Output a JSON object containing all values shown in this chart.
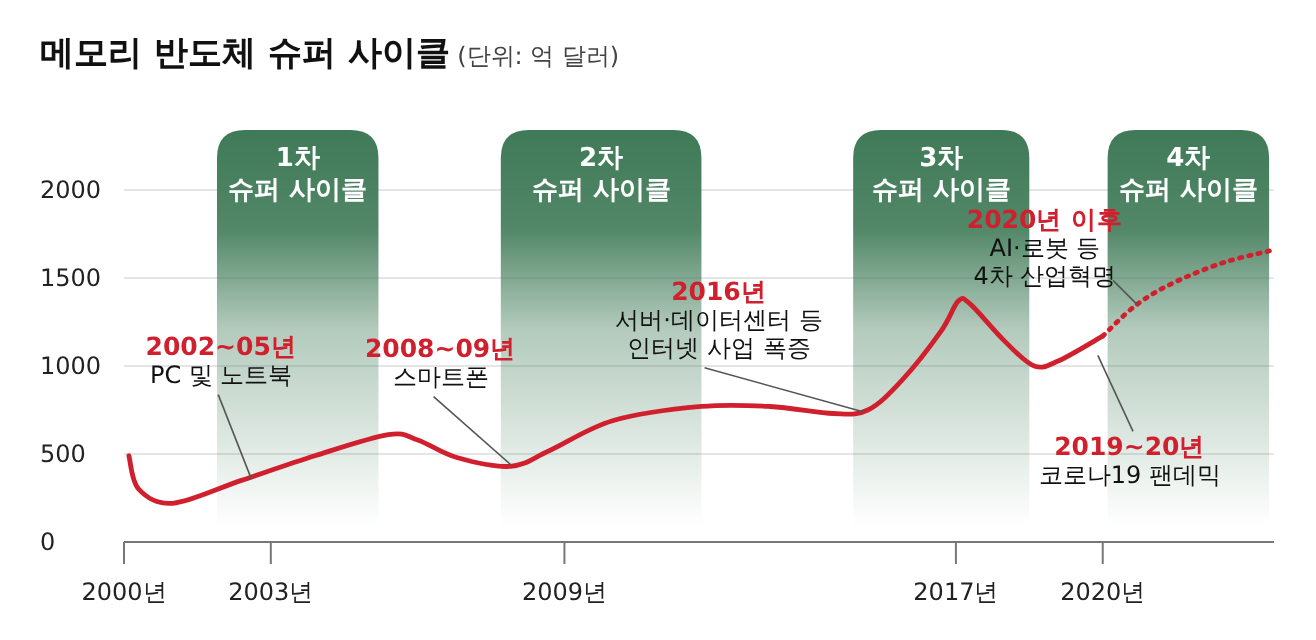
{
  "chart_data": {
    "type": "line",
    "title": "메모리 반도체 슈퍼 사이클",
    "subtitle": "(단위: 억 달러)",
    "xlim": [
      2000,
      2023.5
    ],
    "ylim": [
      0,
      2000
    ],
    "xticks": [
      {
        "value": 2000,
        "label": "2000년"
      },
      {
        "value": 2003,
        "label": "2003년"
      },
      {
        "value": 2009,
        "label": "2009년"
      },
      {
        "value": 2017,
        "label": "2017년"
      },
      {
        "value": 2020,
        "label": "2020년"
      }
    ],
    "yticks": [
      0,
      500,
      1000,
      1500,
      2000
    ],
    "grid": "y",
    "series": [
      {
        "color": "#d0202e",
        "line_style": "solid",
        "x": [
          2000.1,
          2000.3,
          2001,
          2002.4,
          2003.9,
          2005.4,
          2006,
          2006.8,
          2007.9,
          2008.7,
          2010,
          2011.8,
          2013.2,
          2014.5,
          2015.2,
          2015.9,
          2016.7,
          2017.05,
          2017.3,
          2018,
          2018.6,
          2019.1,
          2020
        ],
        "values": [
          490,
          300,
          220,
          350,
          490,
          610,
          580,
          480,
          430,
          520,
          690,
          770,
          770,
          730,
          750,
          920,
          1200,
          1370,
          1350,
          1140,
          1000,
          1030,
          1170
        ]
      },
      {
        "color": "#d0202e",
        "line_style": "dotted",
        "x": [
          2020,
          2020.7,
          2021.5,
          2022.5,
          2023.5
        ],
        "values": [
          1170,
          1350,
          1480,
          1590,
          1660
        ]
      }
    ],
    "bands": [
      {
        "axis": "x",
        "from": 2001.9,
        "to": 2005.2,
        "label": "1차\n슈퍼 사이클",
        "color": "#3f7a57"
      },
      {
        "axis": "x",
        "from": 2007.7,
        "to": 2011.8,
        "label": "2차\n슈퍼 사이클",
        "color": "#3f7a57"
      },
      {
        "axis": "x",
        "from": 2014.9,
        "to": 2018.5,
        "label": "3차\n슈퍼 사이클",
        "color": "#3f7a57"
      },
      {
        "axis": "x",
        "from": 2020.1,
        "to": 2023.4,
        "label": "4차\n슈퍼 사이클",
        "color": "#3f7a57"
      }
    ],
    "annotations": [
      {
        "text": "2002~05년\nPC 및 노트북",
        "x": 2002.6,
        "y": 360
      },
      {
        "text": "2008~09년\n스마트폰",
        "x": 2007.9,
        "y": 440
      },
      {
        "text": "2016년\n서버·데이터센터 등\n인터넷 사업 폭증",
        "x": 2015.1,
        "y": 740
      },
      {
        "text": "2020년 이후\nAI·로봇 등\n4차 산업혁명",
        "x": 2020.7,
        "y": 1350
      },
      {
        "text": "2019~20년\n코로나19 팬데믹",
        "x": 2019.9,
        "y": 1060
      }
    ]
  }
}
